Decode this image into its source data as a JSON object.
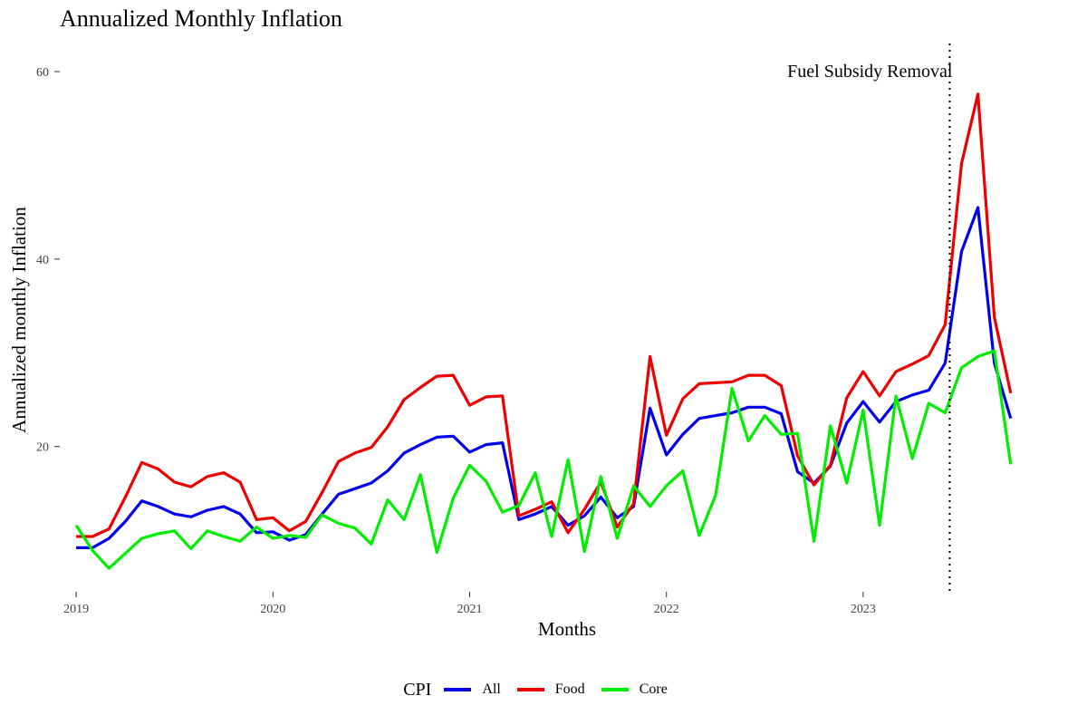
{
  "chart_data": {
    "type": "line",
    "title": "Annualized Monthly Inflation",
    "xlabel": "Months",
    "ylabel": "Annualized monthly Inflation",
    "legend_title": "CPI",
    "legend_position": "bottom",
    "grid": false,
    "x_start": "2019-01",
    "x_ticks": [
      "2019",
      "2020",
      "2021",
      "2022",
      "2023"
    ],
    "y_ticks": [
      20,
      40,
      60
    ],
    "xlim": [
      "2018-12",
      "2023-12"
    ],
    "ylim": [
      4.5,
      63
    ],
    "annotation": {
      "label": "Fuel Subsidy Removal",
      "x": "2023-06"
    },
    "series": [
      {
        "name": "All",
        "color": "#0000ee",
        "values": [
          9.2,
          9.2,
          10.2,
          12.0,
          14.2,
          13.6,
          12.8,
          12.5,
          13.2,
          13.6,
          12.8,
          10.8,
          10.9,
          10.0,
          10.6,
          12.8,
          14.9,
          15.5,
          16.1,
          17.4,
          19.3,
          20.2,
          21.0,
          21.1,
          19.4,
          20.2,
          20.4,
          12.2,
          12.8,
          13.6,
          11.6,
          12.6,
          14.6,
          12.4,
          13.6,
          24.1,
          19.1,
          21.3,
          23.0,
          23.3,
          23.6,
          24.2,
          24.2,
          23.5,
          17.3,
          16.1,
          17.9,
          22.5,
          24.8,
          22.6,
          24.8,
          25.5,
          26.0,
          28.9,
          40.8,
          45.5,
          28.9,
          23.0
        ]
      },
      {
        "name": "Food",
        "color": "#ee0000",
        "values": [
          10.4,
          10.4,
          11.2,
          14.6,
          18.3,
          17.6,
          16.2,
          15.7,
          16.8,
          17.2,
          16.2,
          12.2,
          12.4,
          11.0,
          12.0,
          15.1,
          18.4,
          19.3,
          19.9,
          22.1,
          25.0,
          26.3,
          27.5,
          27.6,
          24.4,
          25.3,
          25.4,
          12.6,
          13.3,
          14.1,
          10.8,
          13.3,
          16.2,
          11.4,
          13.9,
          29.6,
          21.2,
          25.1,
          26.7,
          26.8,
          26.9,
          27.6,
          27.6,
          26.5,
          19.0,
          15.9,
          18.0,
          25.2,
          28.0,
          25.4,
          28.0,
          28.8,
          29.7,
          33.0,
          50.2,
          57.6,
          33.8,
          25.7
        ]
      },
      {
        "name": "Core",
        "color": "#00ee00",
        "values": [
          11.6,
          8.9,
          7.0,
          8.6,
          10.2,
          10.7,
          11.0,
          9.1,
          11.0,
          10.4,
          9.9,
          11.4,
          10.2,
          10.5,
          10.3,
          12.7,
          11.8,
          11.3,
          9.6,
          14.3,
          12.2,
          17.0,
          8.7,
          14.5,
          18.0,
          16.3,
          13.0,
          13.7,
          17.2,
          10.4,
          18.6,
          8.8,
          16.8,
          10.2,
          15.8,
          13.6,
          15.8,
          17.4,
          10.5,
          14.8,
          26.2,
          20.6,
          23.3,
          21.3,
          21.4,
          9.9,
          22.2,
          16.1,
          23.9,
          11.6,
          25.4,
          18.7,
          24.6,
          23.6,
          28.4,
          29.6,
          30.2,
          18.1
        ]
      }
    ]
  }
}
